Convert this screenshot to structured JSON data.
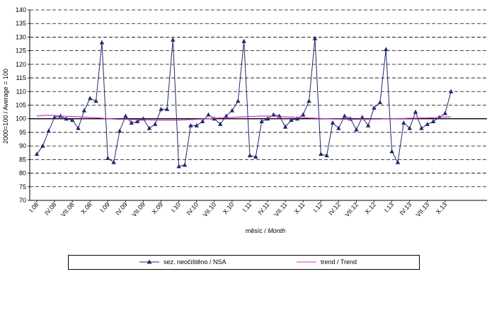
{
  "chart_data": {
    "type": "line",
    "ylabel": "2000=100 / Average = 100",
    "xlabel_cz": "měsíc / ",
    "xlabel_en": "Month",
    "ylim": [
      70,
      140
    ],
    "yticks": [
      70,
      75,
      80,
      85,
      90,
      95,
      100,
      105,
      110,
      115,
      120,
      125,
      130,
      135,
      140
    ],
    "grid": "horizontal dashed",
    "reference_line": 100,
    "xtick_labels": [
      "I.08",
      "IV.08",
      "VII.08",
      "X.08",
      "I.09",
      "IV.09",
      "VII.09",
      "X.09",
      "I.10",
      "IV.10",
      "VII.10",
      "X.10",
      "I.11",
      "IV.11",
      "VII.11",
      "X.11",
      "I.12",
      "IV.12",
      "VII.12",
      "X.12",
      "I.13",
      "IV.13",
      "VII.13",
      "X.13"
    ],
    "legend_position": "bottom",
    "series": [
      {
        "name": "sez. neočištěno / NSA",
        "color": "#1f2a6b",
        "marker": "triangle",
        "values": [
          87,
          90,
          95.5,
          100.5,
          101,
          100,
          99.5,
          96.5,
          103,
          107.5,
          106.5,
          128,
          85.5,
          84,
          95.5,
          101,
          98.5,
          99,
          100,
          96.5,
          98,
          103.5,
          103.5,
          129,
          82.5,
          83,
          97.5,
          97.5,
          99,
          101.5,
          100,
          98,
          101,
          103,
          106.5,
          128.5,
          86.5,
          86,
          99,
          100,
          101.5,
          101,
          97,
          99.5,
          100,
          101.5,
          106.5,
          129.5,
          87,
          86.5,
          98.5,
          96.5,
          101,
          100,
          96,
          100.5,
          97.5,
          104,
          106,
          125.5,
          88,
          84,
          98.5,
          96.5,
          102.5,
          96.5,
          98,
          99,
          100.5,
          102,
          110
        ]
      },
      {
        "name": "trend / Trend",
        "color": "#cc33cc",
        "marker": "none",
        "values": [
          101,
          101.2,
          101.3,
          101.2,
          101,
          100.9,
          100.8,
          100.7,
          100.6,
          100.5,
          100.4,
          100.2,
          100,
          99.9,
          99.8,
          99.8,
          99.7,
          99.7,
          99.6,
          99.6,
          99.5,
          99.5,
          99.5,
          99.5,
          99.5,
          99.6,
          99.7,
          99.8,
          99.9,
          100,
          100.2,
          100.3,
          100.4,
          100.5,
          100.6,
          100.7,
          100.8,
          100.9,
          101,
          101,
          100.9,
          100.8,
          100.7,
          100.6,
          100.5,
          100.4,
          100.3,
          100.2,
          100.1,
          100,
          99.9,
          99.9,
          99.8,
          99.8,
          99.8,
          99.8,
          99.8,
          99.9,
          99.9,
          100,
          100,
          100.1,
          100.1,
          100.2,
          100.2,
          100.3,
          100.3,
          100.4,
          100.5,
          100.6,
          100.7
        ]
      }
    ]
  }
}
